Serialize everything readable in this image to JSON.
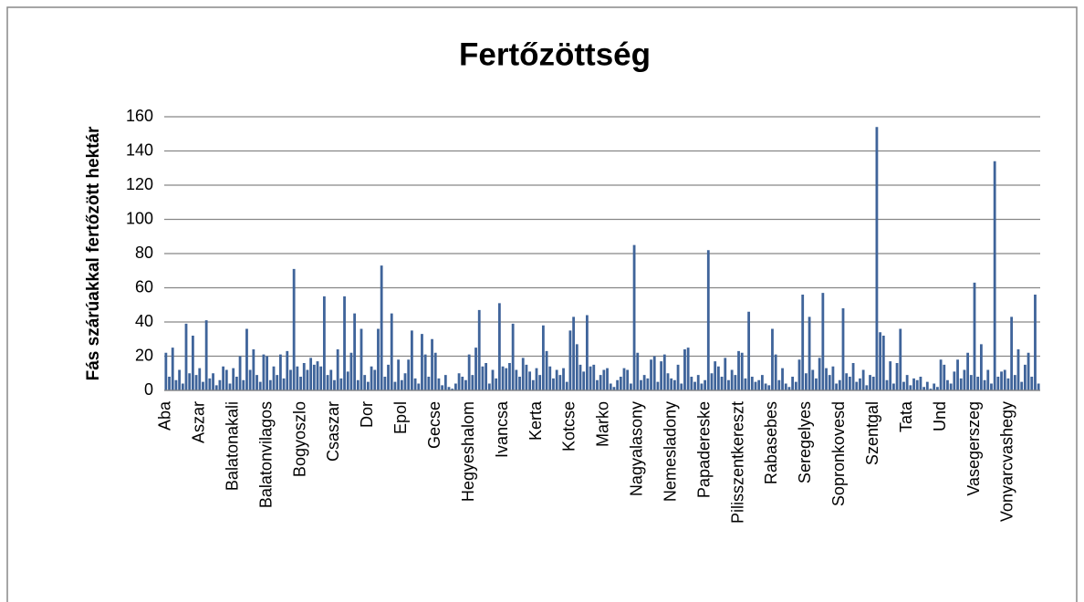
{
  "chart_data": {
    "type": "bar",
    "title": "Fertőzöttség",
    "y_label": "Fás szárúakkal fertőzött hektár",
    "categories": [
      "Aba",
      null,
      null,
      null,
      null,
      null,
      null,
      null,
      null,
      null,
      "Aszar",
      null,
      null,
      null,
      null,
      null,
      null,
      null,
      null,
      null,
      "Balatonakali",
      null,
      null,
      null,
      null,
      null,
      null,
      null,
      null,
      null,
      "Balatonvilagos",
      null,
      null,
      null,
      null,
      null,
      null,
      null,
      null,
      null,
      "Bogyoszlo",
      null,
      null,
      null,
      null,
      null,
      null,
      null,
      null,
      null,
      "Csaszar",
      null,
      null,
      null,
      null,
      null,
      null,
      null,
      null,
      null,
      "Dor",
      null,
      null,
      null,
      null,
      null,
      null,
      null,
      null,
      null,
      "Epol",
      null,
      null,
      null,
      null,
      null,
      null,
      null,
      null,
      null,
      "Gecse",
      null,
      null,
      null,
      null,
      null,
      null,
      null,
      null,
      null,
      "Hegyeshalom",
      null,
      null,
      null,
      null,
      null,
      null,
      null,
      null,
      null,
      "Ivancsa",
      null,
      null,
      null,
      null,
      null,
      null,
      null,
      null,
      null,
      "Kerta",
      null,
      null,
      null,
      null,
      null,
      null,
      null,
      null,
      null,
      "Kotcse",
      null,
      null,
      null,
      null,
      null,
      null,
      null,
      null,
      null,
      "Marko",
      null,
      null,
      null,
      null,
      null,
      null,
      null,
      null,
      null,
      "Nagyalasony",
      null,
      null,
      null,
      null,
      null,
      null,
      null,
      null,
      null,
      "Nemesladony",
      null,
      null,
      null,
      null,
      null,
      null,
      null,
      null,
      null,
      "Papadereske",
      null,
      null,
      null,
      null,
      null,
      null,
      null,
      null,
      null,
      "Pilisszentkereszt",
      null,
      null,
      null,
      null,
      null,
      null,
      null,
      null,
      null,
      "Rabasebes",
      null,
      null,
      null,
      null,
      null,
      null,
      null,
      null,
      null,
      "Seregelyes",
      null,
      null,
      null,
      null,
      null,
      null,
      null,
      null,
      null,
      "Sopronkovesd",
      null,
      null,
      null,
      null,
      null,
      null,
      null,
      null,
      null,
      "Szentgal",
      null,
      null,
      null,
      null,
      null,
      null,
      null,
      null,
      null,
      "Tata",
      null,
      null,
      null,
      null,
      null,
      null,
      null,
      null,
      null,
      "Und",
      null,
      null,
      null,
      null,
      null,
      null,
      null,
      null,
      null,
      "Vasegerszeg",
      null,
      null,
      null,
      null,
      null,
      null,
      null,
      null,
      null,
      "Vonyarcvashegy",
      null,
      null,
      null,
      null,
      null,
      null,
      null,
      null,
      null
    ],
    "values": [
      22,
      8,
      25,
      6,
      12,
      4,
      39,
      10,
      32,
      9,
      13,
      5,
      41,
      7,
      10,
      3,
      6,
      14,
      12,
      4,
      13,
      8,
      20,
      6,
      36,
      12,
      24,
      9,
      5,
      21,
      20,
      6,
      14,
      9,
      21,
      7,
      23,
      12,
      71,
      14,
      8,
      16,
      12,
      19,
      15,
      17,
      14,
      55,
      9,
      12,
      6,
      24,
      7,
      55,
      11,
      22,
      45,
      6,
      36,
      9,
      5,
      14,
      12,
      36,
      73,
      8,
      15,
      45,
      5,
      18,
      6,
      10,
      18,
      35,
      7,
      4,
      33,
      21,
      8,
      30,
      22,
      7,
      3,
      9,
      2,
      1,
      4,
      10,
      8,
      6,
      21,
      9,
      25,
      47,
      14,
      16,
      4,
      12,
      7,
      51,
      14,
      13,
      16,
      39,
      12,
      8,
      19,
      15,
      11,
      6,
      13,
      9,
      38,
      23,
      14,
      7,
      12,
      9,
      13,
      5,
      35,
      43,
      27,
      15,
      11,
      44,
      14,
      15,
      6,
      9,
      12,
      13,
      4,
      2,
      6,
      8,
      13,
      12,
      4,
      85,
      22,
      6,
      9,
      7,
      18,
      20,
      5,
      17,
      21,
      10,
      7,
      6,
      15,
      4,
      24,
      25,
      8,
      5,
      9,
      4,
      6,
      82,
      10,
      17,
      14,
      8,
      19,
      6,
      12,
      9,
      23,
      22,
      7,
      46,
      8,
      5,
      6,
      9,
      4,
      3,
      36,
      21,
      6,
      13,
      4,
      2,
      8,
      5,
      18,
      56,
      10,
      43,
      12,
      7,
      19,
      57,
      13,
      9,
      14,
      4,
      6,
      48,
      10,
      8,
      16,
      5,
      7,
      12,
      3,
      9,
      8,
      154,
      34,
      32,
      6,
      17,
      4,
      16,
      36,
      5,
      9,
      3,
      7,
      6,
      8,
      2,
      5,
      1,
      4,
      2,
      18,
      15,
      6,
      4,
      11,
      18,
      7,
      12,
      22,
      9,
      63,
      8,
      27,
      6,
      12,
      4,
      134,
      8,
      11,
      12,
      7,
      43,
      9,
      24,
      5,
      15,
      22,
      8,
      56,
      4
    ],
    "color": "#3f649a",
    "ylim": [
      0,
      160
    ],
    "yticks": [
      0,
      20,
      40,
      60,
      80,
      100,
      120,
      140,
      160
    ],
    "grid": true
  }
}
